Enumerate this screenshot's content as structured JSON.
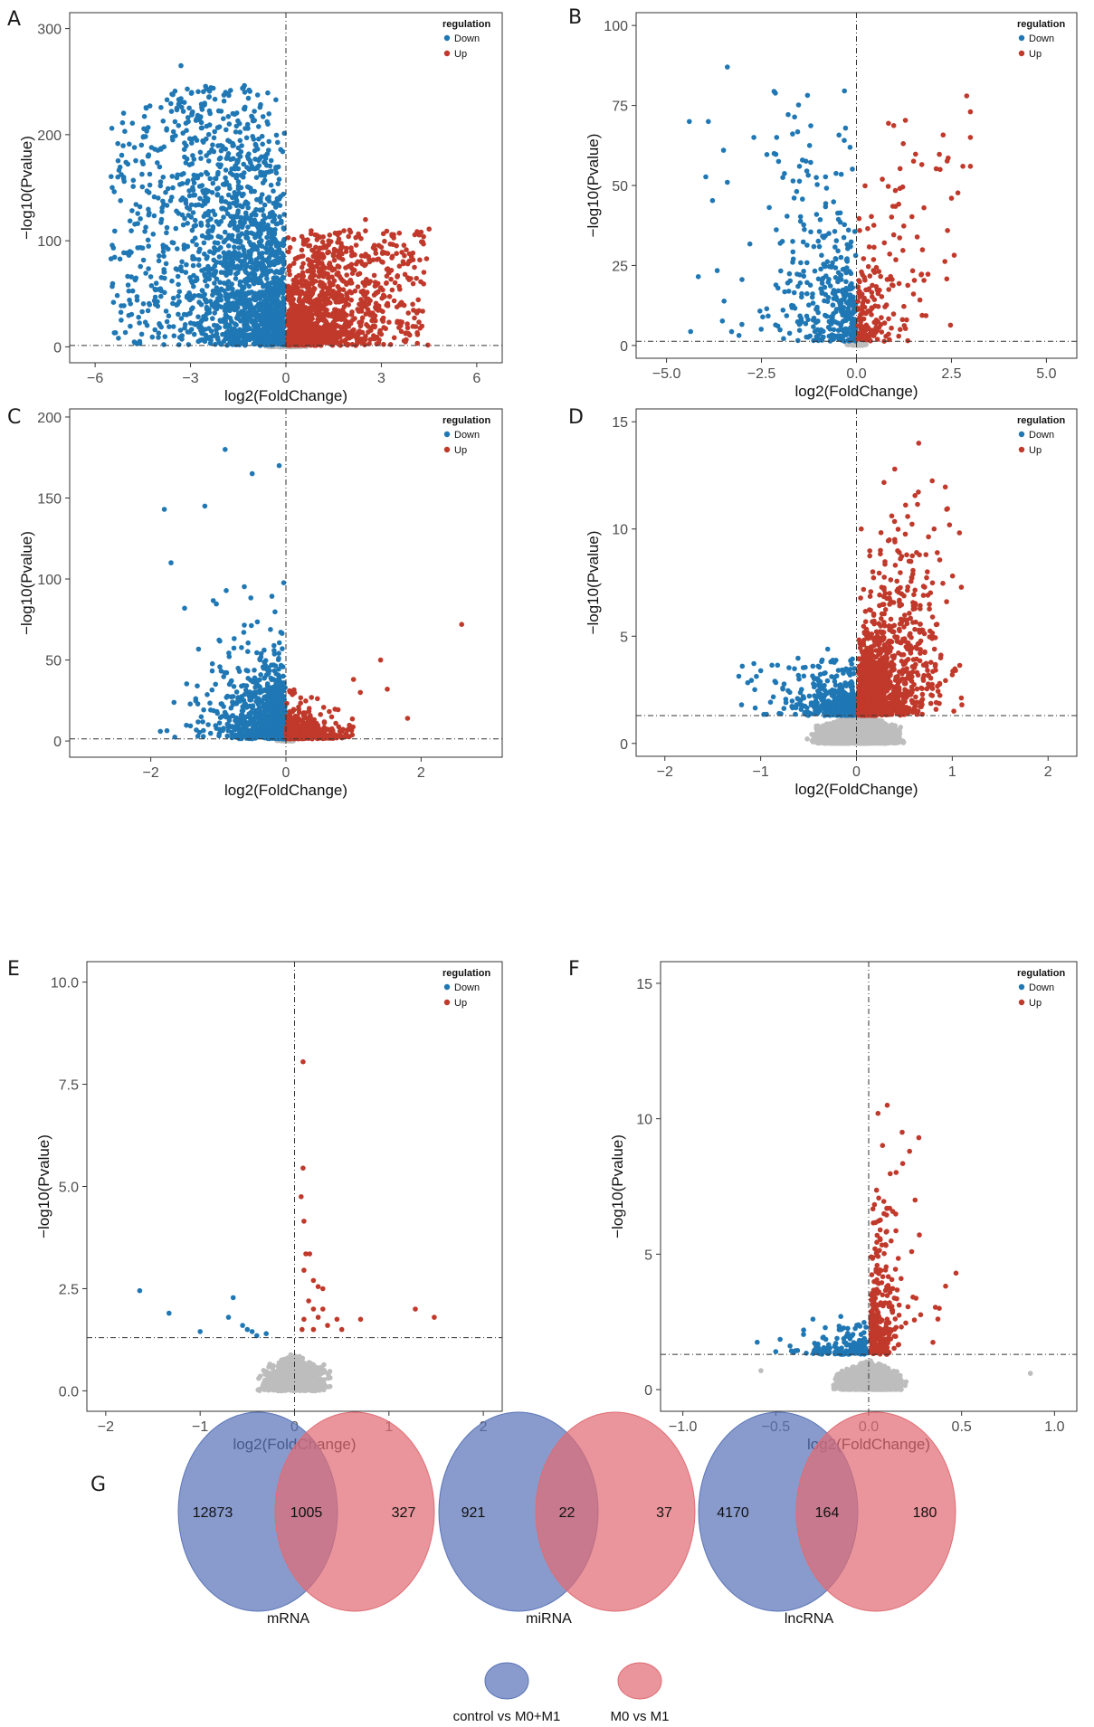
{
  "figure": {
    "letters": [
      "A",
      "B",
      "C",
      "D",
      "E",
      "F",
      "G"
    ]
  },
  "colors": {
    "down": "#1f77b4",
    "up": "#c0392b",
    "ns": "#bdbdbd",
    "venn_a": "#5a74b8",
    "venn_b": "#e06c74"
  },
  "chart_data": [
    {
      "panel": "A",
      "type": "scatter",
      "xlabel": "log2(FoldChange)",
      "ylabel": "−log10(Pvalue)",
      "xlim": [
        -6.8,
        6.8
      ],
      "ylim": [
        -15,
        315
      ],
      "xticks": [
        -6,
        -3,
        0,
        3,
        6
      ],
      "xtick_labels": [
        "−6",
        "−3",
        "0",
        "3",
        "6"
      ],
      "yticks": [
        0,
        100,
        200,
        300
      ],
      "ytick_labels": [
        "0",
        "100",
        "200",
        "300"
      ],
      "threshold_y": 1.3,
      "threshold_x": 0,
      "legend": {
        "title": "regulation",
        "items": [
          "Down",
          "Up"
        ]
      },
      "series": {
        "down": {
          "n": 1900,
          "xmin": 0.05,
          "xmax": 5.5,
          "ymax": 268,
          "xs": 1.8,
          "ys": 60,
          "wide": 0.9
        },
        "up": {
          "n": 1300,
          "xmin": 0.05,
          "xmax": 4.5,
          "ymax": 120,
          "xs": 1.4,
          "ys": 30,
          "wide": 0.8
        },
        "ns": {
          "n": 250,
          "xr": 0.8,
          "yr": 4
        }
      },
      "outliers_down": [
        [
          -5.5,
          83
        ],
        [
          -3.3,
          265
        ],
        [
          -2.4,
          241
        ],
        [
          -1.3,
          224
        ],
        [
          -3.6,
          222
        ],
        [
          -4.8,
          157
        ],
        [
          -3.1,
          243
        ]
      ],
      "outliers_up": [
        [
          4.5,
          111
        ],
        [
          4.3,
          99
        ],
        [
          3.2,
          88
        ],
        [
          3.5,
          66
        ],
        [
          2.5,
          120
        ],
        [
          3.0,
          94
        ]
      ]
    },
    {
      "panel": "B",
      "type": "scatter",
      "xlabel": "log2(FoldChange)",
      "ylabel": "−log10(Pvalue)",
      "xlim": [
        -5.8,
        5.8
      ],
      "ylim": [
        -4,
        104
      ],
      "xticks": [
        -5,
        -2.5,
        0,
        2.5,
        5
      ],
      "xtick_labels": [
        "−5.0",
        "−2.5",
        "0.0",
        "2.5",
        "5.0"
      ],
      "yticks": [
        0,
        25,
        50,
        75,
        100
      ],
      "ytick_labels": [
        "0",
        "25",
        "50",
        "75",
        "100"
      ],
      "threshold_y": 1.3,
      "threshold_x": 0,
      "legend": {
        "title": "regulation",
        "items": [
          "Down",
          "Up"
        ]
      },
      "series": {
        "down": {
          "n": 380,
          "xmin": 0.02,
          "xmax": 4.4,
          "ymax": 87,
          "xs": 0.9,
          "ys": 10,
          "v": 14
        },
        "up": {
          "n": 200,
          "xmin": 0.02,
          "xmax": 3.0,
          "ymax": 78,
          "xs": 0.7,
          "ys": 7,
          "v": 18
        },
        "ns": {
          "n": 60,
          "xr": 0.3,
          "yr": 1.5
        }
      },
      "outliers_down": [
        [
          -3.4,
          87
        ],
        [
          -4.4,
          70
        ],
        [
          -3.9,
          70
        ],
        [
          -3.5,
          61
        ],
        [
          -2.7,
          65
        ],
        [
          -2.1,
          65
        ],
        [
          -1.5,
          56
        ],
        [
          -3.4,
          51
        ]
      ],
      "outliers_up": [
        [
          2.9,
          78
        ],
        [
          3.0,
          73
        ],
        [
          3.0,
          65
        ],
        [
          2.8,
          56
        ],
        [
          3.0,
          56
        ],
        [
          2.5,
          46
        ],
        [
          2.2,
          55
        ]
      ]
    },
    {
      "panel": "C",
      "type": "scatter",
      "xlabel": "log2(FoldChange)",
      "ylabel": "−log10(Pvalue)",
      "xlim": [
        -3.2,
        3.2
      ],
      "ylim": [
        -10,
        205
      ],
      "xticks": [
        -2,
        0,
        2
      ],
      "xtick_labels": [
        "−2",
        "0",
        "2"
      ],
      "yticks": [
        0,
        50,
        100,
        150,
        200
      ],
      "ytick_labels": [
        "0",
        "50",
        "100",
        "150",
        "200"
      ],
      "threshold_y": 1.3,
      "threshold_x": 0,
      "legend": {
        "title": "regulation",
        "items": [
          "Down",
          "Up"
        ]
      },
      "series": {
        "down": {
          "n": 1100,
          "xmin": 0.01,
          "xmax": 1.9,
          "ymax": 180,
          "xs": 0.3,
          "ys": 18,
          "wide": 0.45
        },
        "up": {
          "n": 450,
          "xmin": 0.01,
          "xmax": 1.0,
          "ymax": 36,
          "xs": 0.3,
          "ys": 6
        },
        "ns": {
          "n": 80,
          "xr": 0.15,
          "yr": 1.2
        }
      },
      "outliers_down": [
        [
          -1.8,
          143
        ],
        [
          -1.7,
          110
        ],
        [
          -0.9,
          180
        ],
        [
          -0.5,
          165
        ],
        [
          -0.1,
          170
        ],
        [
          -1.5,
          82
        ],
        [
          -1.2,
          145
        ]
      ],
      "outliers_up": [
        [
          2.6,
          72
        ],
        [
          1.4,
          50
        ],
        [
          1.5,
          32
        ],
        [
          1.8,
          14
        ],
        [
          1.1,
          30
        ],
        [
          1.0,
          38
        ]
      ]
    },
    {
      "panel": "D",
      "type": "scatter",
      "xlabel": "log2(FoldChange)",
      "ylabel": "−log10(Pvalue)",
      "xlim": [
        -2.3,
        2.3
      ],
      "ylim": [
        -0.6,
        15.6
      ],
      "xticks": [
        -2,
        -1,
        0,
        1,
        2
      ],
      "xtick_labels": [
        "−2",
        "−1",
        "0",
        "1",
        "2"
      ],
      "yticks": [
        0,
        5,
        10,
        15
      ],
      "ytick_labels": [
        "0",
        "5",
        "10",
        "15"
      ],
      "threshold_y": 1.3,
      "threshold_x": 0,
      "legend": {
        "title": "regulation",
        "items": [
          "Down",
          "Up"
        ]
      },
      "series": {
        "down": {
          "n": 500,
          "xmin": 0.02,
          "xmax": 1.3,
          "ymax": 4.4,
          "xs": 0.22,
          "ys": 0.45,
          "fy": 1.3,
          "v": 1.2
        },
        "up": {
          "n": 1400,
          "xmin": 0.02,
          "xmax": 1.1,
          "ymax": 14,
          "xs": 0.25,
          "ys": 0.55,
          "fy": 1.3,
          "v": 5
        },
        "ns": {
          "n": 3000,
          "xr": 0.55,
          "yr": 1.3
        }
      },
      "outliers_down": [
        [
          -1.2,
          1.8
        ],
        [
          -0.3,
          4.4
        ],
        [
          -0.6,
          3.0
        ],
        [
          -0.4,
          3.6
        ]
      ],
      "outliers_up": [
        [
          0.65,
          14.0
        ],
        [
          0.81,
          10.0
        ],
        [
          0.05,
          10.0
        ],
        [
          0.3,
          7.0
        ],
        [
          0.17,
          8.0
        ],
        [
          0.25,
          9.0
        ],
        [
          1.0,
          3.2
        ],
        [
          1.1,
          1.8
        ]
      ]
    },
    {
      "panel": "E",
      "type": "scatter",
      "xlabel": "log2(FoldChange)",
      "ylabel": "−log10(Pvalue)",
      "xlim": [
        -2.2,
        2.2
      ],
      "ylim": [
        -0.5,
        10.5
      ],
      "xticks": [
        -2,
        -1,
        0,
        1,
        2
      ],
      "xtick_labels": [
        "−2",
        "−1",
        "0",
        "1",
        "2"
      ],
      "yticks": [
        0,
        2.5,
        5,
        7.5,
        10
      ],
      "ytick_labels": [
        "0.0",
        "2.5",
        "5.0",
        "7.5",
        "10.0"
      ],
      "threshold_y": 1.3,
      "threshold_x": 0,
      "legend": {
        "title": "regulation",
        "items": [
          "Down",
          "Up"
        ]
      },
      "series": {
        "down": {
          "n": 0
        },
        "up": {
          "n": 0
        },
        "ns": {
          "n": 900,
          "xr": 0.45,
          "yr": 0.9
        }
      },
      "outliers_down": [
        [
          -1.64,
          2.45
        ],
        [
          -1.33,
          1.9
        ],
        [
          -0.65,
          2.28
        ],
        [
          -0.7,
          1.8
        ],
        [
          -1.0,
          1.45
        ],
        [
          -0.5,
          1.5
        ],
        [
          -0.4,
          1.35
        ],
        [
          -0.45,
          1.45
        ],
        [
          -0.3,
          1.4
        ],
        [
          -0.55,
          1.6
        ]
      ],
      "outliers_up": [
        [
          0.09,
          8.05
        ],
        [
          0.09,
          5.45
        ],
        [
          0.07,
          4.75
        ],
        [
          0.1,
          4.15
        ],
        [
          0.12,
          3.35
        ],
        [
          0.16,
          3.35
        ],
        [
          0.1,
          2.95
        ],
        [
          0.2,
          2.7
        ],
        [
          0.25,
          2.55
        ],
        [
          0.3,
          2.5
        ],
        [
          0.15,
          2.2
        ],
        [
          0.2,
          2.0
        ],
        [
          0.3,
          2.0
        ],
        [
          0.25,
          1.8
        ],
        [
          0.1,
          1.75
        ],
        [
          0.08,
          1.5
        ],
        [
          0.45,
          1.75
        ],
        [
          0.5,
          1.5
        ],
        [
          0.7,
          1.75
        ],
        [
          1.28,
          2.0
        ],
        [
          1.48,
          1.8
        ],
        [
          0.2,
          1.5
        ],
        [
          0.35,
          1.6
        ]
      ]
    },
    {
      "panel": "F",
      "type": "scatter",
      "xlabel": "log2(FoldChange)",
      "ylabel": "−log10(Pvalue)",
      "xlim": [
        -1.12,
        1.12
      ],
      "ylim": [
        -0.8,
        15.8
      ],
      "xticks": [
        -1,
        -0.5,
        0,
        0.5,
        1
      ],
      "xtick_labels": [
        "−1.0",
        "−0.5",
        "0.0",
        "0.5",
        "1.0"
      ],
      "yticks": [
        0,
        5,
        10,
        15
      ],
      "ytick_labels": [
        "0",
        "5",
        "10",
        "15"
      ],
      "threshold_y": 1.3,
      "threshold_x": 0,
      "legend": {
        "title": "regulation",
        "items": [
          "Down",
          "Up"
        ]
      },
      "series": {
        "down": {
          "n": 160,
          "xmin": 0.01,
          "xmax": 0.55,
          "ymax": 2.7,
          "xs": 0.12,
          "ys": 0.35,
          "fy": 1.3
        },
        "up": {
          "n": 320,
          "xmin": 0.01,
          "xmax": 0.5,
          "ymax": 10.5,
          "xs": 0.06,
          "ys": 1.2,
          "fy": 1.3,
          "v": 5
        },
        "ns": {
          "n": 1800,
          "xr": 0.22,
          "yr": 1.0
        }
      },
      "outliers_down": [
        [
          -0.6,
          1.75
        ],
        [
          -0.5,
          1.4
        ],
        [
          -0.35,
          2.2
        ],
        [
          -0.3,
          2.6
        ],
        [
          -0.15,
          2.7
        ]
      ],
      "outliers_up": [
        [
          0.1,
          10.5
        ],
        [
          0.18,
          9.5
        ],
        [
          0.22,
          8.8
        ],
        [
          0.27,
          9.3
        ],
        [
          0.25,
          7.0
        ],
        [
          0.47,
          4.3
        ],
        [
          0.05,
          10.2
        ],
        [
          0.38,
          3.0
        ]
      ],
      "outliers_ns": [
        [
          0.87,
          0.6
        ],
        [
          -0.58,
          0.7
        ]
      ]
    },
    {
      "panel": "G",
      "type": "venn",
      "sets": [
        "control vs M0+M1",
        "M0 vs M1"
      ],
      "groups": [
        {
          "label": "mRNA",
          "left_only": "12873",
          "both": "1005",
          "right_only": "327"
        },
        {
          "label": "miRNA",
          "left_only": "921",
          "both": "22",
          "right_only": "37"
        },
        {
          "label": "lncRNA",
          "left_only": "4170",
          "both": "164",
          "right_only": "180"
        }
      ],
      "legend": [
        "control vs M0+M1",
        "M0 vs M1"
      ]
    }
  ]
}
